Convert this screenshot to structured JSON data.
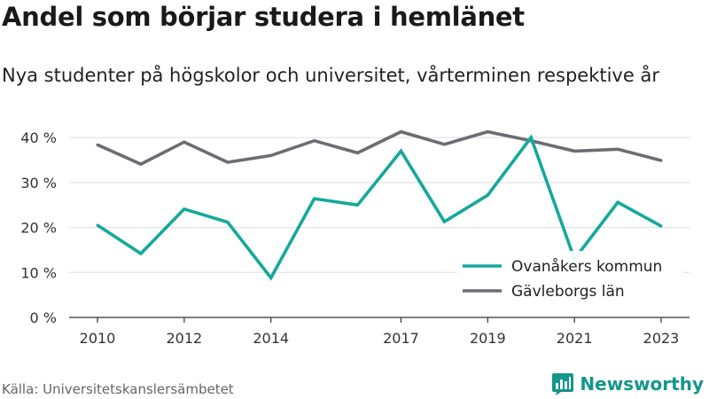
{
  "header": {
    "title": "Andel som börjar studera i hemlänet",
    "subtitle": "Nya studenter på högskolor och universitet, vårterminen respektive år"
  },
  "footer": {
    "source": "Källa: Universitetskanslersämbetet",
    "brand": "Newsworthy",
    "brand_icon": "bar-chart-speech-bubble-icon"
  },
  "colors": {
    "series_1": "#14a99a",
    "series_2": "#6d6c73",
    "grid": "#dddddd",
    "axis": "#333333",
    "brand": "#14968b"
  },
  "chart_data": {
    "type": "line",
    "x": [
      2010,
      2011,
      2012,
      2013,
      2014,
      2015,
      2016,
      2017,
      2018,
      2019,
      2020,
      2021,
      2022,
      2023
    ],
    "x_tick_labels": [
      "2010",
      "2012",
      "2014",
      "2017",
      "2019",
      "2021",
      "2023"
    ],
    "y_tick_labels": [
      "0 %",
      "10 %",
      "20 %",
      "30 %",
      "40 %"
    ],
    "ylim": [
      0,
      42
    ],
    "grid": true,
    "legend_position": "bottom-right",
    "series": [
      {
        "name": "Ovanåkers kommun",
        "values": [
          20.5,
          14.2,
          24.1,
          21.2,
          8.8,
          26.4,
          25.0,
          37.0,
          21.3,
          27.2,
          40.0,
          13.0,
          25.6,
          20.3
        ]
      },
      {
        "name": "Gävleborgs län",
        "values": [
          38.4,
          34.1,
          39.0,
          34.5,
          36.0,
          39.3,
          36.6,
          41.3,
          38.5,
          41.3,
          39.3,
          37.0,
          37.4,
          34.9
        ]
      }
    ]
  }
}
